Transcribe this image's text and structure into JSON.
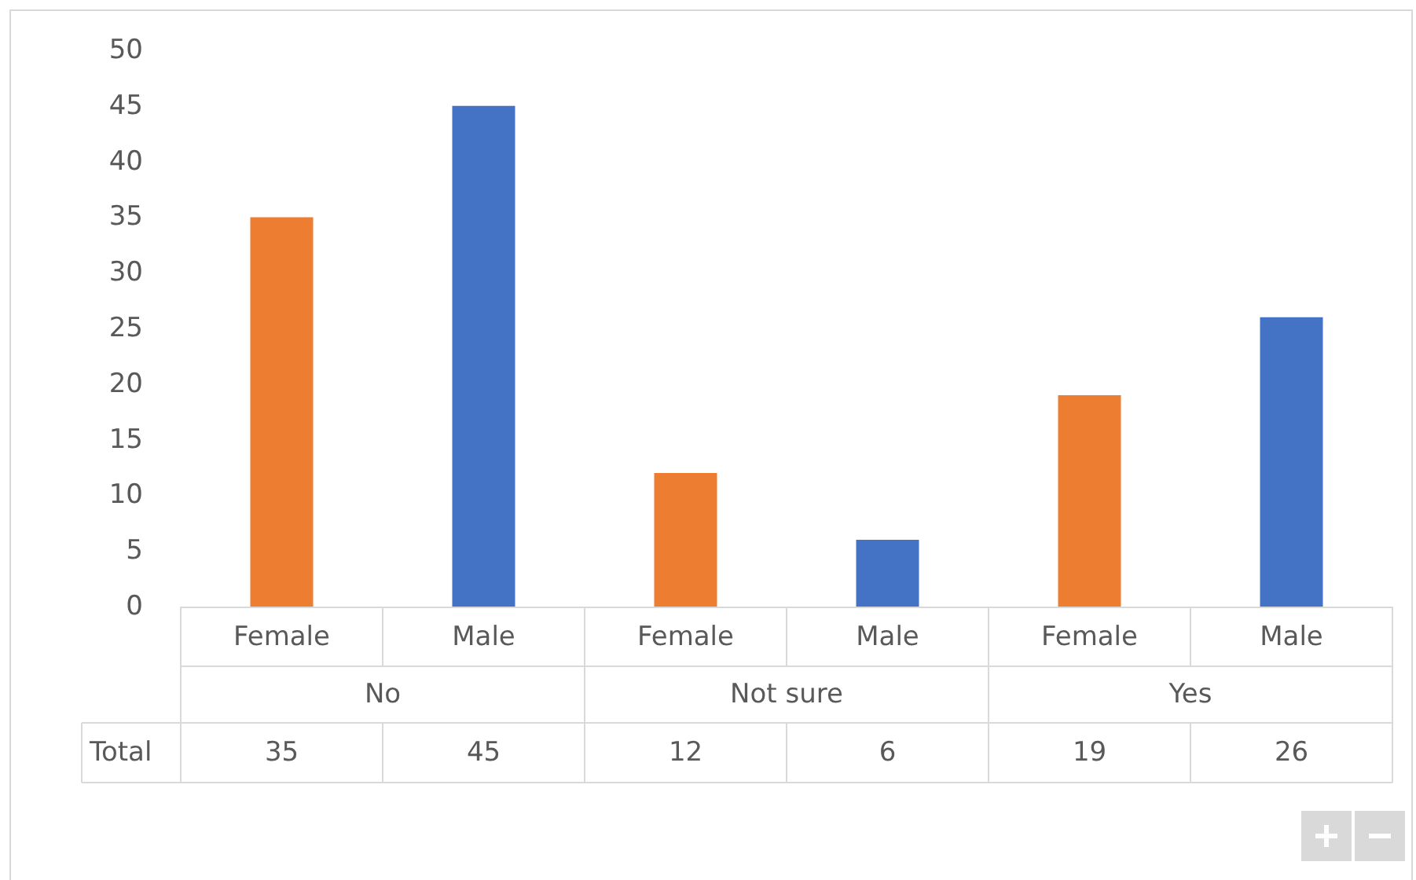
{
  "chart_data": {
    "type": "bar",
    "categories": [
      "Female",
      "Male",
      "Female",
      "Male",
      "Female",
      "Male"
    ],
    "annotations": [
      "No",
      "Not sure",
      "Yes"
    ],
    "series": [
      {
        "name": "Total",
        "values": [
          35,
          45,
          12,
          6,
          19,
          26
        ],
        "colors": [
          "#ed7d31",
          "#4472c4",
          "#ed7d31",
          "#4472c4",
          "#ed7d31",
          "#4472c4"
        ]
      }
    ],
    "ylim": [
      0,
      50
    ],
    "yticks": [
      0,
      5,
      10,
      15,
      20,
      25,
      30,
      35,
      40,
      45,
      50
    ],
    "grid": false,
    "legend": false,
    "data_labels": true
  }
}
